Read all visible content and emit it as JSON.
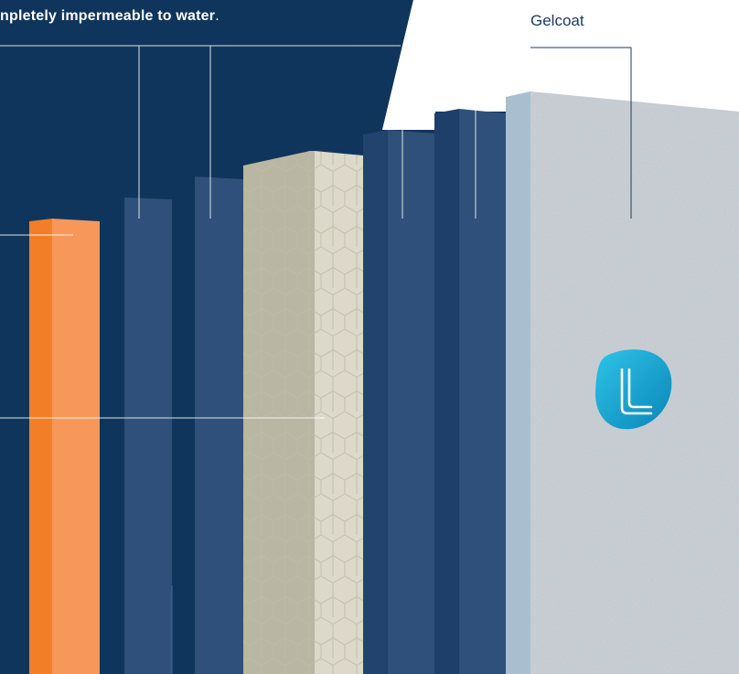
{
  "caption": {
    "bold_text": "npletely impermeable to water",
    "trailing": "."
  },
  "layers": {
    "gelcoat_label": "Gelcoat"
  },
  "logo": {
    "icon": "ll-logo-icon",
    "color": "#1aa3cf"
  },
  "colors": {
    "navy_background": "#10355c",
    "laminate_blue": "#2f507a",
    "dark_laminate": "#21416e",
    "orange_layer": "#f7985a",
    "honeycomb_core": "#d8d5c6",
    "gelcoat_panel": "#c7ced4"
  }
}
